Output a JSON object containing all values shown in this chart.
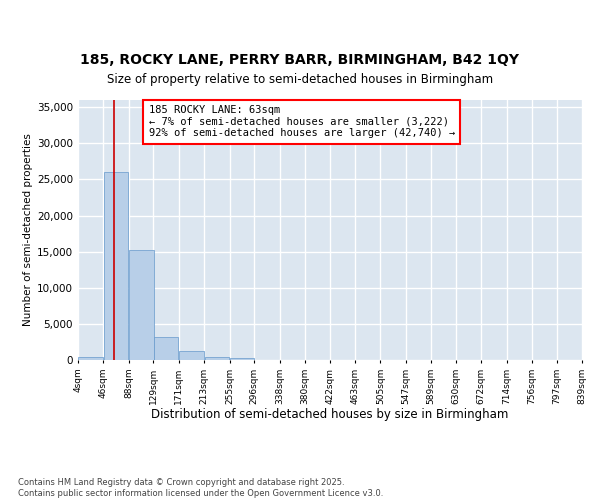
{
  "title1": "185, ROCKY LANE, PERRY BARR, BIRMINGHAM, B42 1QY",
  "title2": "Size of property relative to semi-detached houses in Birmingham",
  "xlabel": "Distribution of semi-detached houses by size in Birmingham",
  "ylabel": "Number of semi-detached properties",
  "bar_color": "#b8cfe8",
  "bar_edge_color": "#6699cc",
  "background_color": "#dce6f0",
  "grid_color": "#ffffff",
  "annotation_text": "185 ROCKY LANE: 63sqm\n← 7% of semi-detached houses are smaller (3,222)\n92% of semi-detached houses are larger (42,740) →",
  "vline_color": "#cc0000",
  "vline_x_index": 1,
  "bins": [
    4,
    46,
    88,
    129,
    171,
    213,
    255,
    296,
    338,
    380,
    422,
    463,
    505,
    547,
    589,
    630,
    672,
    714,
    756,
    797,
    839
  ],
  "bin_labels": [
    "4sqm",
    "46sqm",
    "88sqm",
    "129sqm",
    "171sqm",
    "213sqm",
    "255sqm",
    "296sqm",
    "338sqm",
    "380sqm",
    "422sqm",
    "463sqm",
    "505sqm",
    "547sqm",
    "589sqm",
    "630sqm",
    "672sqm",
    "714sqm",
    "756sqm",
    "797sqm",
    "839sqm"
  ],
  "bar_heights": [
    400,
    26100,
    15200,
    3200,
    1200,
    450,
    300,
    0,
    0,
    0,
    0,
    0,
    0,
    0,
    0,
    0,
    0,
    0,
    0,
    0
  ],
  "ylim": [
    0,
    36000
  ],
  "yticks": [
    0,
    5000,
    10000,
    15000,
    20000,
    25000,
    30000,
    35000
  ],
  "footer": "Contains HM Land Registry data © Crown copyright and database right 2025.\nContains public sector information licensed under the Open Government Licence v3.0.",
  "fig_width": 6.0,
  "fig_height": 5.0
}
